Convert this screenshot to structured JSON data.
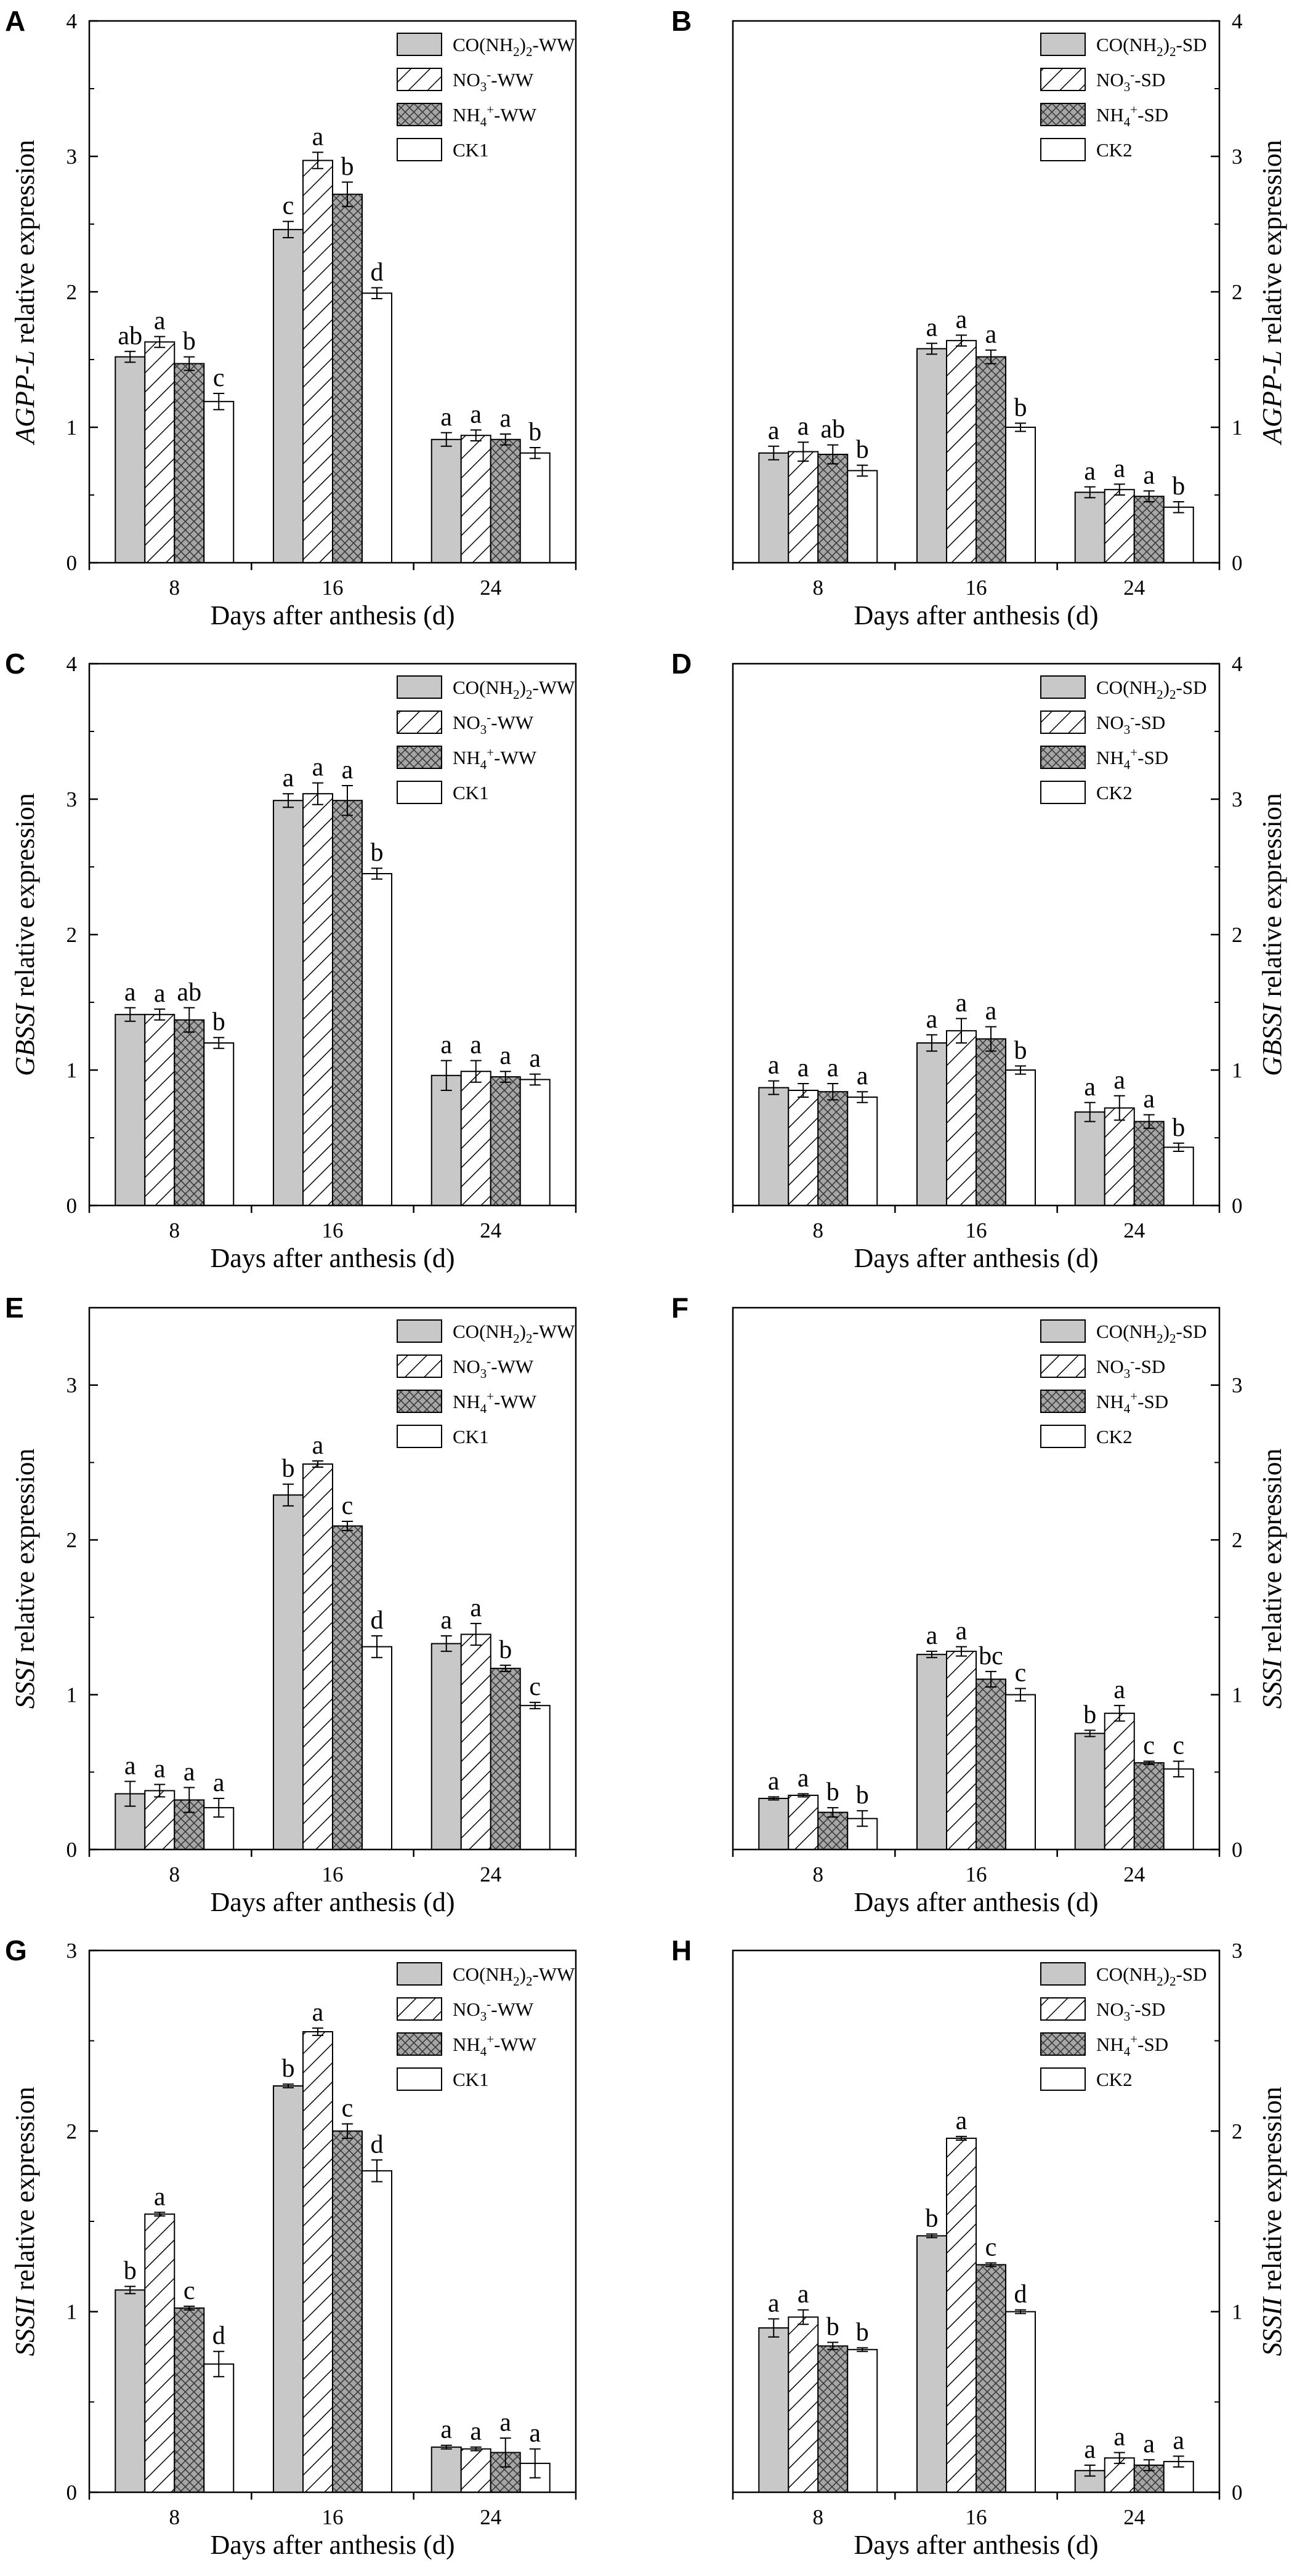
{
  "xlabel": "Days after anthesis (d)",
  "colors": {
    "urea": "#c8c8c8",
    "nitrate": "#ffffff",
    "ammonium": "#a6a6a6",
    "control": "#ffffff",
    "axis": "#000000"
  },
  "chart_data": [
    {
      "letter": "A",
      "type": "bar",
      "side": "left",
      "gene": "AGPP-L",
      "ylabel_suffix": " relative expression",
      "xlabel": "Days after anthesis (d)",
      "categories": [
        "8",
        "16",
        "24"
      ],
      "ylim": [
        0,
        4
      ],
      "yticks": [
        "0",
        "1",
        "2",
        "3",
        "4"
      ],
      "series": [
        {
          "name": "CO(NH2)2-WW",
          "legend": {
            "base": "CO(NH",
            "sub1": "2",
            "mid": ")",
            "sub2": "2",
            "tail": "-WW"
          },
          "pattern": "solid",
          "values": [
            1.52,
            2.46,
            0.91
          ],
          "errors": [
            0.04,
            0.06,
            0.05
          ],
          "letters": [
            "ab",
            "c",
            "a"
          ]
        },
        {
          "name": "NO3--WW",
          "legend": {
            "base": "NO",
            "sub1": "3",
            "sup": "-",
            "tail": "-WW"
          },
          "pattern": "hatch",
          "values": [
            1.63,
            2.97,
            0.94
          ],
          "errors": [
            0.04,
            0.06,
            0.04
          ],
          "letters": [
            "a",
            "a",
            "a"
          ]
        },
        {
          "name": "NH4+-WW",
          "legend": {
            "base": "NH",
            "sub1": "4",
            "sup": "+",
            "tail": "-WW"
          },
          "pattern": "cross",
          "values": [
            1.47,
            2.72,
            0.91
          ],
          "errors": [
            0.05,
            0.09,
            0.04
          ],
          "letters": [
            "b",
            "b",
            "a"
          ]
        },
        {
          "name": "CK1",
          "legend": {
            "base": "CK1"
          },
          "pattern": "empty",
          "values": [
            1.19,
            1.99,
            0.81
          ],
          "errors": [
            0.06,
            0.04,
            0.04
          ],
          "letters": [
            "c",
            "d",
            "b"
          ]
        }
      ]
    },
    {
      "letter": "B",
      "type": "bar",
      "side": "right",
      "gene": "AGPP-L",
      "ylabel_suffix": " relative expression",
      "xlabel": "Days after anthesis (d)",
      "categories": [
        "8",
        "16",
        "24"
      ],
      "ylim": [
        0,
        4
      ],
      "yticks": [
        "0",
        "1",
        "2",
        "3",
        "4"
      ],
      "series": [
        {
          "name": "CO(NH2)2-SD",
          "legend": {
            "base": "CO(NH",
            "sub1": "2",
            "mid": ")",
            "sub2": "2",
            "tail": "-SD"
          },
          "pattern": "solid",
          "values": [
            0.81,
            1.58,
            0.52
          ],
          "errors": [
            0.05,
            0.04,
            0.04
          ],
          "letters": [
            "a",
            "a",
            "a"
          ]
        },
        {
          "name": "NO3--SD",
          "legend": {
            "base": "NO",
            "sub1": "3",
            "sup": "-",
            "tail": "-SD"
          },
          "pattern": "hatch",
          "values": [
            0.82,
            1.64,
            0.54
          ],
          "errors": [
            0.07,
            0.04,
            0.04
          ],
          "letters": [
            "a",
            "a",
            "a"
          ]
        },
        {
          "name": "NH4+-SD",
          "legend": {
            "base": "NH",
            "sub1": "4",
            "sup": "+",
            "tail": "-SD"
          },
          "pattern": "cross",
          "values": [
            0.8,
            1.52,
            0.49
          ],
          "errors": [
            0.07,
            0.05,
            0.04
          ],
          "letters": [
            "ab",
            "a",
            "a"
          ]
        },
        {
          "name": "CK2",
          "legend": {
            "base": "CK2"
          },
          "pattern": "empty",
          "values": [
            0.68,
            1.0,
            0.41
          ],
          "errors": [
            0.04,
            0.03,
            0.04
          ],
          "letters": [
            "b",
            "b",
            "b"
          ]
        }
      ]
    },
    {
      "letter": "C",
      "type": "bar",
      "side": "left",
      "gene": "GBSSI",
      "ylabel_suffix": " relative expression",
      "xlabel": "Days after anthesis (d)",
      "categories": [
        "8",
        "16",
        "24"
      ],
      "ylim": [
        0,
        4
      ],
      "yticks": [
        "0",
        "1",
        "2",
        "3",
        "4"
      ],
      "series": [
        {
          "name": "CO(NH2)2-WW",
          "legend": {
            "base": "CO(NH",
            "sub1": "2",
            "mid": ")",
            "sub2": "2",
            "tail": "-WW"
          },
          "pattern": "solid",
          "values": [
            1.41,
            2.99,
            0.96
          ],
          "errors": [
            0.05,
            0.05,
            0.11
          ],
          "letters": [
            "a",
            "a",
            "a"
          ]
        },
        {
          "name": "NO3--WW",
          "legend": {
            "base": "NO",
            "sub1": "3",
            "sup": "-",
            "tail": "-WW"
          },
          "pattern": "hatch",
          "values": [
            1.41,
            3.04,
            0.99
          ],
          "errors": [
            0.04,
            0.08,
            0.08
          ],
          "letters": [
            "a",
            "a",
            "a"
          ]
        },
        {
          "name": "NH4+-WW",
          "legend": {
            "base": "NH",
            "sub1": "4",
            "sup": "+",
            "tail": "-WW"
          },
          "pattern": "cross",
          "values": [
            1.37,
            2.99,
            0.95
          ],
          "errors": [
            0.09,
            0.11,
            0.04
          ],
          "letters": [
            "ab",
            "a",
            "a"
          ]
        },
        {
          "name": "CK1",
          "legend": {
            "base": "CK1"
          },
          "pattern": "empty",
          "values": [
            1.2,
            2.45,
            0.93
          ],
          "errors": [
            0.04,
            0.04,
            0.04
          ],
          "letters": [
            "b",
            "b",
            "a"
          ]
        }
      ]
    },
    {
      "letter": "D",
      "type": "bar",
      "side": "right",
      "gene": "GBSSI",
      "ylabel_suffix": " relative expression",
      "xlabel": "Days after anthesis (d)",
      "categories": [
        "8",
        "16",
        "24"
      ],
      "ylim": [
        0,
        4
      ],
      "yticks": [
        "0",
        "1",
        "2",
        "3",
        "4"
      ],
      "series": [
        {
          "name": "CO(NH2)2-SD",
          "legend": {
            "base": "CO(NH",
            "sub1": "2",
            "mid": ")",
            "sub2": "2",
            "tail": "-SD"
          },
          "pattern": "solid",
          "values": [
            0.87,
            1.2,
            0.69
          ],
          "errors": [
            0.05,
            0.06,
            0.07
          ],
          "letters": [
            "a",
            "a",
            "a"
          ]
        },
        {
          "name": "NO3--SD",
          "legend": {
            "base": "NO",
            "sub1": "3",
            "sup": "-",
            "tail": "-SD"
          },
          "pattern": "hatch",
          "values": [
            0.85,
            1.29,
            0.72
          ],
          "errors": [
            0.05,
            0.09,
            0.09
          ],
          "letters": [
            "a",
            "a",
            "a"
          ]
        },
        {
          "name": "NH4+-SD",
          "legend": {
            "base": "NH",
            "sub1": "4",
            "sup": "+",
            "tail": "-SD"
          },
          "pattern": "cross",
          "values": [
            0.84,
            1.23,
            0.62
          ],
          "errors": [
            0.06,
            0.09,
            0.05
          ],
          "letters": [
            "a",
            "a",
            "a"
          ]
        },
        {
          "name": "CK2",
          "legend": {
            "base": "CK2"
          },
          "pattern": "empty",
          "values": [
            0.8,
            1.0,
            0.43
          ],
          "errors": [
            0.04,
            0.03,
            0.03
          ],
          "letters": [
            "a",
            "b",
            "b"
          ]
        }
      ]
    },
    {
      "letter": "E",
      "type": "bar",
      "side": "left",
      "gene": "SSSI",
      "ylabel_suffix": " relative expression",
      "xlabel": "Days after anthesis (d)",
      "categories": [
        "8",
        "16",
        "24"
      ],
      "ylim": [
        0,
        3.5
      ],
      "yticks": [
        "0",
        "1",
        "2",
        "3"
      ],
      "series": [
        {
          "name": "CO(NH2)2-WW",
          "legend": {
            "base": "CO(NH",
            "sub1": "2",
            "mid": ")",
            "sub2": "2",
            "tail": "-WW"
          },
          "pattern": "solid",
          "values": [
            0.36,
            2.29,
            1.33
          ],
          "errors": [
            0.08,
            0.07,
            0.05
          ],
          "letters": [
            "a",
            "b",
            "a"
          ]
        },
        {
          "name": "NO3--WW",
          "legend": {
            "base": "NO",
            "sub1": "3",
            "sup": "-",
            "tail": "-WW"
          },
          "pattern": "hatch",
          "values": [
            0.38,
            2.49,
            1.39
          ],
          "errors": [
            0.04,
            0.02,
            0.07
          ],
          "letters": [
            "a",
            "a",
            "a"
          ]
        },
        {
          "name": "NH4+-WW",
          "legend": {
            "base": "NH",
            "sub1": "4",
            "sup": "+",
            "tail": "-WW"
          },
          "pattern": "cross",
          "values": [
            0.32,
            2.09,
            1.17
          ],
          "errors": [
            0.08,
            0.03,
            0.02
          ],
          "letters": [
            "a",
            "c",
            "b"
          ]
        },
        {
          "name": "CK1",
          "legend": {
            "base": "CK1"
          },
          "pattern": "empty",
          "values": [
            0.27,
            1.31,
            0.93
          ],
          "errors": [
            0.06,
            0.07,
            0.02
          ],
          "letters": [
            "a",
            "d",
            "c"
          ]
        }
      ]
    },
    {
      "letter": "F",
      "type": "bar",
      "side": "right",
      "gene": "SSSI",
      "ylabel_suffix": " relative expression",
      "xlabel": "Days after anthesis (d)",
      "categories": [
        "8",
        "16",
        "24"
      ],
      "ylim": [
        0,
        3.5
      ],
      "yticks": [
        "0",
        "1",
        "2",
        "3"
      ],
      "series": [
        {
          "name": "CO(NH2)2-SD",
          "legend": {
            "base": "CO(NH",
            "sub1": "2",
            "mid": ")",
            "sub2": "2",
            "tail": "-SD"
          },
          "pattern": "solid",
          "values": [
            0.33,
            1.26,
            0.75
          ],
          "errors": [
            0.01,
            0.02,
            0.02
          ],
          "letters": [
            "a",
            "a",
            "b"
          ]
        },
        {
          "name": "NO3--SD",
          "legend": {
            "base": "NO",
            "sub1": "3",
            "sup": "-",
            "tail": "-SD"
          },
          "pattern": "hatch",
          "values": [
            0.35,
            1.28,
            0.88
          ],
          "errors": [
            0.01,
            0.03,
            0.05
          ],
          "letters": [
            "a",
            "a",
            "a"
          ]
        },
        {
          "name": "NH4+-SD",
          "legend": {
            "base": "NH",
            "sub1": "4",
            "sup": "+",
            "tail": "-SD"
          },
          "pattern": "cross",
          "values": [
            0.24,
            1.1,
            0.56
          ],
          "errors": [
            0.03,
            0.05,
            0.01
          ],
          "letters": [
            "b",
            "bc",
            "c"
          ]
        },
        {
          "name": "CK2",
          "legend": {
            "base": "CK2"
          },
          "pattern": "empty",
          "values": [
            0.2,
            1.0,
            0.52
          ],
          "errors": [
            0.05,
            0.04,
            0.05
          ],
          "letters": [
            "b",
            "c",
            "c"
          ]
        }
      ]
    },
    {
      "letter": "G",
      "type": "bar",
      "side": "left",
      "gene": "SSSII",
      "ylabel_suffix": " relative expression",
      "xlabel": "Days after anthesis (d)",
      "categories": [
        "8",
        "16",
        "24"
      ],
      "ylim": [
        0,
        3
      ],
      "yticks": [
        "0",
        "1",
        "2",
        "3"
      ],
      "series": [
        {
          "name": "CO(NH2)2-WW",
          "legend": {
            "base": "CO(NH",
            "sub1": "2",
            "mid": ")",
            "sub2": "2",
            "tail": "-WW"
          },
          "pattern": "solid",
          "values": [
            1.12,
            2.25,
            0.25
          ],
          "errors": [
            0.02,
            0.01,
            0.01
          ],
          "letters": [
            "b",
            "b",
            "a"
          ]
        },
        {
          "name": "NO3--WW",
          "legend": {
            "base": "NO",
            "sub1": "3",
            "sup": "-",
            "tail": "-WW"
          },
          "pattern": "hatch",
          "values": [
            1.54,
            2.55,
            0.24
          ],
          "errors": [
            0.01,
            0.02,
            0.01
          ],
          "letters": [
            "a",
            "a",
            "a"
          ]
        },
        {
          "name": "NH4+-WW",
          "legend": {
            "base": "NH",
            "sub1": "4",
            "sup": "+",
            "tail": "-WW"
          },
          "pattern": "cross",
          "values": [
            1.02,
            2.0,
            0.22
          ],
          "errors": [
            0.01,
            0.04,
            0.08
          ],
          "letters": [
            "c",
            "c",
            "a"
          ]
        },
        {
          "name": "CK1",
          "legend": {
            "base": "CK1"
          },
          "pattern": "empty",
          "values": [
            0.71,
            1.78,
            0.16
          ],
          "errors": [
            0.07,
            0.06,
            0.08
          ],
          "letters": [
            "d",
            "d",
            "a"
          ]
        }
      ]
    },
    {
      "letter": "H",
      "type": "bar",
      "side": "right",
      "gene": "SSSII",
      "ylabel_suffix": " relative expression",
      "xlabel": "Days after anthesis (d)",
      "categories": [
        "8",
        "16",
        "24"
      ],
      "ylim": [
        0,
        3
      ],
      "yticks": [
        "0",
        "1",
        "2",
        "3"
      ],
      "series": [
        {
          "name": "CO(NH2)2-SD",
          "legend": {
            "base": "CO(NH",
            "sub1": "2",
            "mid": ")",
            "sub2": "2",
            "tail": "-SD"
          },
          "pattern": "solid",
          "values": [
            0.91,
            1.42,
            0.12
          ],
          "errors": [
            0.05,
            0.01,
            0.03
          ],
          "letters": [
            "a",
            "b",
            "a"
          ]
        },
        {
          "name": "NO3--SD",
          "legend": {
            "base": "NO",
            "sub1": "3",
            "sup": "-",
            "tail": "-SD"
          },
          "pattern": "hatch",
          "values": [
            0.97,
            1.96,
            0.19
          ],
          "errors": [
            0.04,
            0.01,
            0.03
          ],
          "letters": [
            "a",
            "a",
            "a"
          ]
        },
        {
          "name": "NH4+-SD",
          "legend": {
            "base": "NH",
            "sub1": "4",
            "sup": "+",
            "tail": "-SD"
          },
          "pattern": "cross",
          "values": [
            0.81,
            1.26,
            0.15
          ],
          "errors": [
            0.02,
            0.01,
            0.03
          ],
          "letters": [
            "b",
            "c",
            "a"
          ]
        },
        {
          "name": "CK2",
          "legend": {
            "base": "CK2"
          },
          "pattern": "empty",
          "values": [
            0.79,
            1.0,
            0.17
          ],
          "errors": [
            0.01,
            0.01,
            0.03
          ],
          "letters": [
            "b",
            "d",
            "a"
          ]
        }
      ]
    }
  ]
}
